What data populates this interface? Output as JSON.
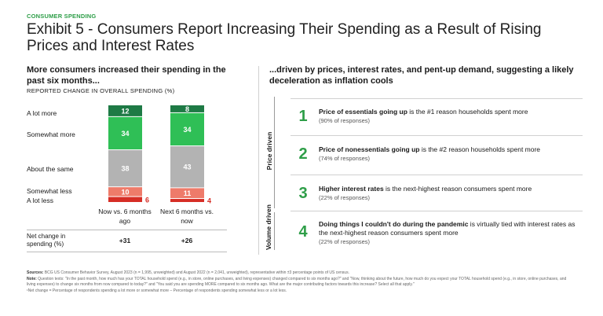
{
  "header": {
    "kicker": "CONSUMER SPENDING",
    "title": "Exhibit 5 - Consumers Report Increasing Their Spending as a Result of Rising Prices and Interest Rates"
  },
  "left": {
    "heading": "More consumers increased their spending in the past six months...",
    "subheading": "REPORTED CHANGE IN OVERALL SPENDING (%)",
    "net_label": "Net change in spending (%)",
    "net_values": [
      "+31",
      "+26"
    ]
  },
  "chart_data": {
    "type": "bar",
    "stacked": true,
    "title": "REPORTED CHANGE IN OVERALL SPENDING (%)",
    "categories": [
      "Now vs. 6 months ago",
      "Next 6 months vs. now"
    ],
    "series": [
      {
        "name": "A lot more",
        "color": "#1e7a45",
        "values": [
          12,
          8
        ]
      },
      {
        "name": "Somewhat more",
        "color": "#2fbf56",
        "values": [
          34,
          34
        ]
      },
      {
        "name": "About the same",
        "color": "#b3b3b3",
        "values": [
          38,
          43
        ]
      },
      {
        "name": "Somewhat less",
        "color": "#ee7b6a",
        "values": [
          10,
          11
        ]
      },
      {
        "name": "A lot less",
        "color": "#d62e26",
        "values": [
          6,
          4
        ]
      }
    ],
    "ylim": [
      0,
      100
    ]
  },
  "right": {
    "heading": "...driven by prices, interest rates, and pent-up demand, suggesting a likely deceleration as inflation cools",
    "groups": [
      "Price driven",
      "Volume driven"
    ],
    "items": [
      {
        "num": "1",
        "bold": "Price of essentials going up",
        "text": " is the #1 reason households spent more",
        "sub": "(90% of responses)"
      },
      {
        "num": "2",
        "bold": "Price of nonessentials going up",
        "text": " is the #2 reason households spent more",
        "sub": "(74% of responses)"
      },
      {
        "num": "3",
        "bold": "Higher interest rates",
        "text": " is the next-highest reason consumers spent more",
        "sub": "(22% of responses)"
      },
      {
        "num": "4",
        "bold": "Doing things I couldn't do during the pandemic",
        "text": " is virtually tied with interest rates as the next-highest reason consumers spent more",
        "sub": "(22% of responses)"
      }
    ]
  },
  "footer": {
    "sources_label": "Sources:",
    "sources": "BCG US Consumer Behavior Survey, August 2023 (n = 1,995, unweighted) and August 2022 (n = 2,041, unweighted), representative within ±3 percentage points of US census.",
    "note_label": "Note:",
    "note": "Question texts: \"In the past month, how much has your TOTAL household spend (e.g., in store, online purchases, and living expenses) changed compared to six months ago?\" and \"Now, thinking about the future, how much do you expect your TOTAL household spend (e.g., in store, online purchases, and living expenses) to change six months from now compared to today?\" and \"You said you are spending MORE compared to six months ago. What are the major contributing factors towards this increase? Select all that apply.\"",
    "footnote": "¹Net change = Percentage of respondents spending a lot more or somewhat more – Percentage of respondents spending somewhat less or a lot less."
  }
}
